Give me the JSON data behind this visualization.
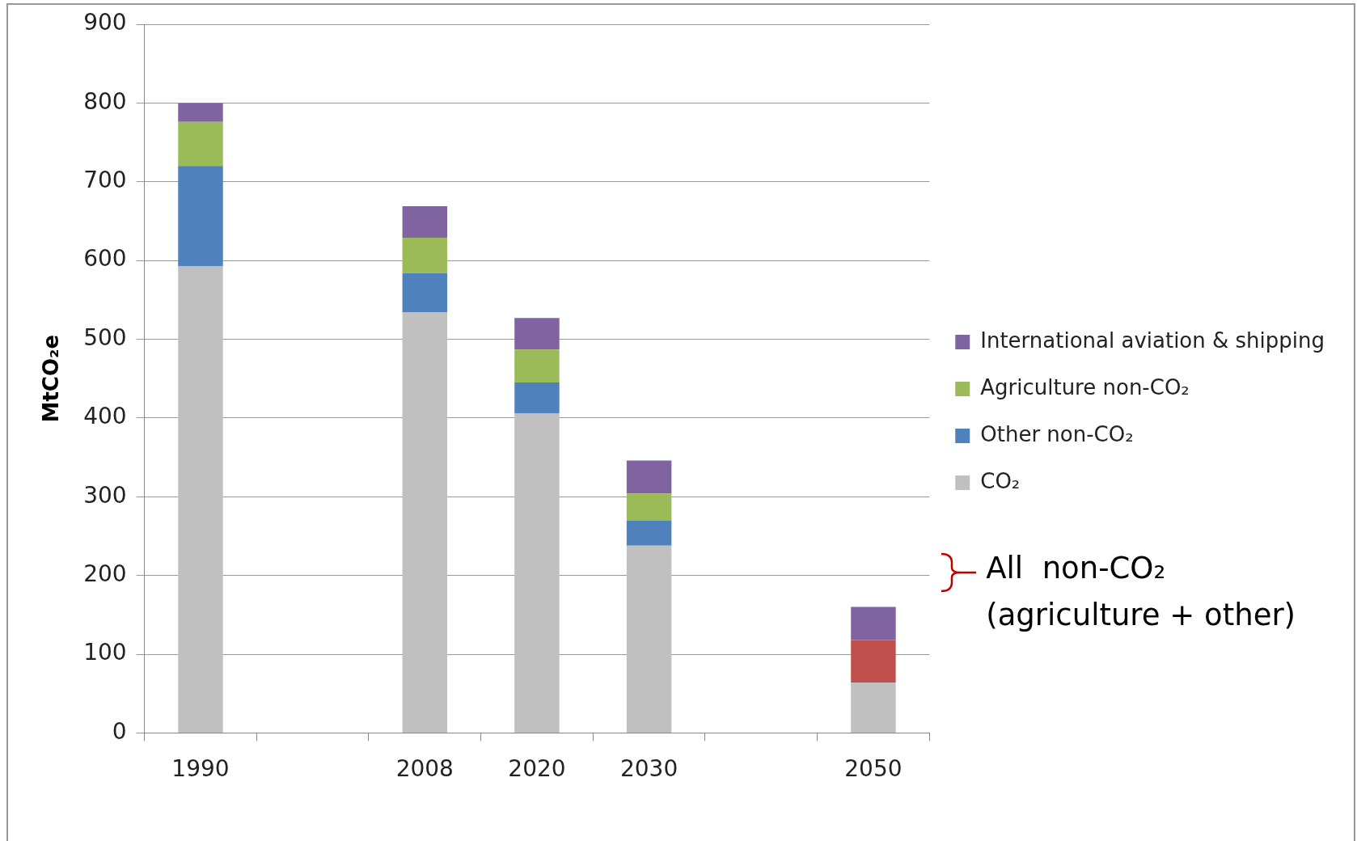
{
  "chart_data": {
    "type": "bar",
    "stacked": true,
    "ylabel": "MtCO₂e",
    "categories": [
      "1990",
      null,
      "2008",
      "2020",
      "2030",
      null,
      "2050"
    ],
    "series": [
      {
        "name": "CO₂",
        "color": "#c0c0c0",
        "values": [
          593,
          null,
          534,
          406,
          238,
          null,
          64
        ]
      },
      {
        "name": "Other non-CO₂",
        "color": "#4f81bd",
        "values": [
          127,
          null,
          50,
          39,
          32,
          null,
          null
        ]
      },
      {
        "name": "Agriculture non-CO₂",
        "color": "#9bbb59",
        "values": [
          56,
          null,
          45,
          42,
          34,
          null,
          null
        ]
      },
      {
        "color": "#c0504d",
        "values": [
          null,
          null,
          null,
          null,
          null,
          null,
          54
        ]
      },
      {
        "name": "International aviation & shipping",
        "color": "#8064a2",
        "values": [
          24,
          null,
          40,
          40,
          42,
          null,
          42
        ]
      }
    ],
    "annotations": [
      "All  non-CO₂\n(agriculture + other)"
    ],
    "ylim": [
      0,
      900
    ],
    "yticks": [
      0,
      100,
      200,
      300,
      400,
      500,
      600,
      700,
      800,
      900
    ],
    "grid": "y",
    "legend": "right"
  }
}
